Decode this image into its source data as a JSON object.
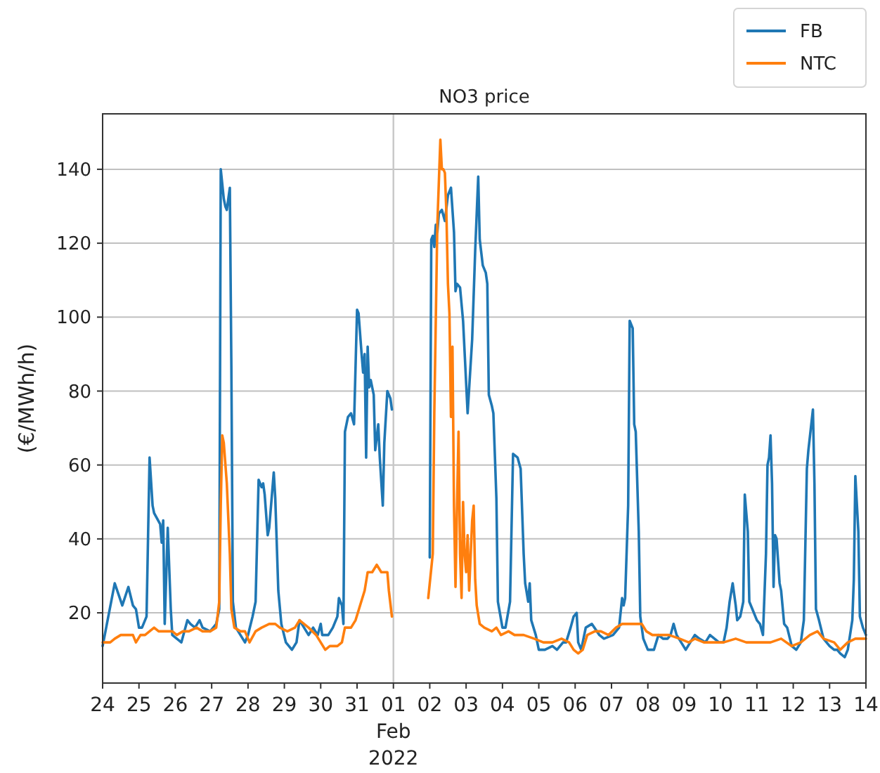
{
  "chart_data": {
    "type": "line",
    "title": "NO3 price",
    "ylabel": "(€/MWh/h)",
    "xlim": [
      "2022-01-24",
      "2022-02-14"
    ],
    "xticks": [
      {
        "value": "2022-01-24",
        "label": "24"
      },
      {
        "value": "2022-01-25",
        "label": "25"
      },
      {
        "value": "2022-01-26",
        "label": "26"
      },
      {
        "value": "2022-01-27",
        "label": "27"
      },
      {
        "value": "2022-01-28",
        "label": "28"
      },
      {
        "value": "2022-01-29",
        "label": "29"
      },
      {
        "value": "2022-01-30",
        "label": "30"
      },
      {
        "value": "2022-01-31",
        "label": "31"
      },
      {
        "value": "2022-02-01",
        "label": "01\nFeb\n2022"
      },
      {
        "value": "2022-02-02",
        "label": "02"
      },
      {
        "value": "2022-02-03",
        "label": "03"
      },
      {
        "value": "2022-02-04",
        "label": "04"
      },
      {
        "value": "2022-02-05",
        "label": "05"
      },
      {
        "value": "2022-02-06",
        "label": "06"
      },
      {
        "value": "2022-02-07",
        "label": "07"
      },
      {
        "value": "2022-02-08",
        "label": "08"
      },
      {
        "value": "2022-02-09",
        "label": "09"
      },
      {
        "value": "2022-02-10",
        "label": "10"
      },
      {
        "value": "2022-02-11",
        "label": "11"
      },
      {
        "value": "2022-02-12",
        "label": "12"
      },
      {
        "value": "2022-02-13",
        "label": "13"
      },
      {
        "value": "2022-02-14",
        "label": "14"
      }
    ],
    "ylim": [
      1,
      155
    ],
    "yticks": [
      20,
      40,
      60,
      80,
      100,
      120,
      140
    ],
    "grid": "y",
    "legend": "top right",
    "ref_lines": [
      {
        "axis": "x",
        "value": "2022-02-01",
        "color": "#c8c8c8"
      }
    ],
    "series": [
      {
        "name": "FB",
        "color": "#1f77b4",
        "x": [
          "2022-01-24T00:00",
          "2022-01-24T08:00",
          "2022-01-24T13:00",
          "2022-01-24T17:00",
          "2022-01-24T20:00",
          "2022-01-24T22:00",
          "2022-01-25T00:00",
          "2022-01-25T02:00",
          "2022-01-25T05:00",
          "2022-01-25T07:00",
          "2022-01-25T09:00",
          "2022-01-25T10:00",
          "2022-01-25T14:00",
          "2022-01-25T15:00",
          "2022-01-25T16:00",
          "2022-01-25T17:00",
          "2022-01-25T19:00",
          "2022-01-25T21:00",
          "2022-01-25T22:00",
          "2022-01-26T01:00",
          "2022-01-26T04:00",
          "2022-01-26T08:00",
          "2022-01-26T10:00",
          "2022-01-26T13:00",
          "2022-01-26T16:00",
          "2022-01-26T18:00",
          "2022-01-26T23:00",
          "2022-01-27T03:00",
          "2022-01-27T05:00",
          "2022-01-27T06:00",
          "2022-01-27T08:00",
          "2022-01-27T09:00",
          "2022-01-27T10:00",
          "2022-01-27T12:00",
          "2022-01-27T13:00",
          "2022-01-27T14:00",
          "2022-01-27T16:00",
          "2022-01-27T19:00",
          "2022-01-27T22:00",
          "2022-01-28T00:00",
          "2022-01-28T03:00",
          "2022-01-28T05:00",
          "2022-01-28T07:00",
          "2022-01-28T09:00",
          "2022-01-28T10:00",
          "2022-01-28T11:00",
          "2022-01-28T13:00",
          "2022-01-28T14:00",
          "2022-01-28T17:00",
          "2022-01-28T18:00",
          "2022-01-28T20:00",
          "2022-01-28T22:00",
          "2022-01-29T01:00",
          "2022-01-29T05:00",
          "2022-01-29T08:00",
          "2022-01-29T10:00",
          "2022-01-29T13:00",
          "2022-01-29T16:00",
          "2022-01-29T19:00",
          "2022-01-29T22:00",
          "2022-01-30T00:00",
          "2022-01-30T01:00",
          "2022-01-30T05:00",
          "2022-01-30T08:00",
          "2022-01-30T11:00",
          "2022-01-30T12:00",
          "2022-01-30T14:00",
          "2022-01-30T15:00",
          "2022-01-30T16:00",
          "2022-01-30T18:00",
          "2022-01-30T20:00",
          "2022-01-30T22:00",
          "2022-01-31T00:00",
          "2022-01-31T01:00",
          "2022-01-31T03:00",
          "2022-01-31T04:00",
          "2022-01-31T05:00",
          "2022-01-31T06:00",
          "2022-01-31T07:00",
          "2022-01-31T08:00",
          "2022-01-31T09:00",
          "2022-01-31T11:00",
          "2022-01-31T12:00",
          "2022-01-31T14:00",
          "2022-01-31T15:00",
          "2022-01-31T17:00",
          "2022-01-31T18:00",
          "2022-01-31T20:00",
          "2022-01-31T22:00",
          "2022-01-31T23:00",
          "2022-02-01T12:00",
          "2022-02-02T00:00",
          "2022-02-02T01:00",
          "2022-02-02T02:00",
          "2022-02-02T03:00",
          "2022-02-02T04:00",
          "2022-02-02T05:00",
          "2022-02-02T06:00",
          "2022-02-02T08:00",
          "2022-02-02T10:00",
          "2022-02-02T12:00",
          "2022-02-02T14:00",
          "2022-02-02T16:00",
          "2022-02-02T17:00",
          "2022-02-02T18:00",
          "2022-02-02T20:00",
          "2022-02-02T22:00",
          "2022-02-03T01:00",
          "2022-02-03T04:00",
          "2022-02-03T06:00",
          "2022-02-03T08:00",
          "2022-02-03T09:00",
          "2022-02-03T11:00",
          "2022-02-03T13:00",
          "2022-02-03T14:00",
          "2022-02-03T15:00",
          "2022-02-03T17:00",
          "2022-02-03T18:00",
          "2022-02-03T20:00",
          "2022-02-03T21:00",
          "2022-02-04T00:00",
          "2022-02-04T02:00",
          "2022-02-04T05:00",
          "2022-02-04T07:00",
          "2022-02-04T10:00",
          "2022-02-04T12:00",
          "2022-02-04T14:00",
          "2022-02-04T15:00",
          "2022-02-04T17:00",
          "2022-02-04T18:00",
          "2022-02-04T19:00",
          "2022-02-04T22:00",
          "2022-02-05T00:00",
          "2022-02-05T04:00",
          "2022-02-05T09:00",
          "2022-02-05T12:00",
          "2022-02-05T16:00",
          "2022-02-05T18:00",
          "2022-02-05T21:00",
          "2022-02-05T23:00",
          "2022-02-06T01:00",
          "2022-02-06T02:00",
          "2022-02-06T04:00",
          "2022-02-06T07:00",
          "2022-02-06T11:00",
          "2022-02-06T16:00",
          "2022-02-06T19:00",
          "2022-02-07T01:00",
          "2022-02-07T05:00",
          "2022-02-07T07:00",
          "2022-02-07T08:00",
          "2022-02-07T09:00",
          "2022-02-07T11:00",
          "2022-02-07T12:00",
          "2022-02-07T14:00",
          "2022-02-07T15:00",
          "2022-02-07T16:00",
          "2022-02-07T18:00",
          "2022-02-07T19:00",
          "2022-02-07T21:00",
          "2022-02-08T00:00",
          "2022-02-08T04:00",
          "2022-02-08T07:00",
          "2022-02-08T10:00",
          "2022-02-08T13:00",
          "2022-02-08T15:00",
          "2022-02-08T17:00",
          "2022-02-08T19:00",
          "2022-02-08T22:00",
          "2022-02-09T01:00",
          "2022-02-09T04:00",
          "2022-02-09T07:00",
          "2022-02-09T10:00",
          "2022-02-09T14:00",
          "2022-02-09T17:00",
          "2022-02-09T20:00",
          "2022-02-09T23:00",
          "2022-02-10T02:00",
          "2022-02-10T04:00",
          "2022-02-10T06:00",
          "2022-02-10T08:00",
          "2022-02-10T10:00",
          "2022-02-10T11:00",
          "2022-02-10T13:00",
          "2022-02-10T15:00",
          "2022-02-10T16:00",
          "2022-02-10T18:00",
          "2022-02-10T19:00",
          "2022-02-10T21:00",
          "2022-02-11T00:00",
          "2022-02-11T02:00",
          "2022-02-11T04:00",
          "2022-02-11T06:00",
          "2022-02-11T07:00",
          "2022-02-11T08:00",
          "2022-02-11T09:00",
          "2022-02-11T10:00",
          "2022-02-11T11:00",
          "2022-02-11T12:00",
          "2022-02-11T13:00",
          "2022-02-11T15:00",
          "2022-02-11T16:00",
          "2022-02-11T18:00",
          "2022-02-11T20:00",
          "2022-02-11T23:00",
          "2022-02-12T02:00",
          "2022-02-12T05:00",
          "2022-02-12T07:00",
          "2022-02-12T09:00",
          "2022-02-12T10:00",
          "2022-02-12T13:00",
          "2022-02-12T14:00",
          "2022-02-12T15:00",
          "2022-02-12T17:00",
          "2022-02-12T20:00",
          "2022-02-13T00:00",
          "2022-02-13T03:00",
          "2022-02-13T05:00",
          "2022-02-13T07:00",
          "2022-02-13T10:00",
          "2022-02-13T12:00",
          "2022-02-13T15:00",
          "2022-02-13T16:00",
          "2022-02-13T17:00",
          "2022-02-13T19:00",
          "2022-02-13T20:00",
          "2022-02-13T22:00",
          "2022-02-14T00:00"
        ],
        "values": [
          11,
          28,
          22,
          27,
          22,
          21,
          16,
          16,
          19,
          62,
          49,
          47,
          44,
          39,
          45,
          17,
          43,
          21,
          14,
          13,
          12,
          18,
          17,
          16,
          18,
          16,
          15,
          17,
          21,
          140,
          132,
          130,
          129,
          135,
          87,
          23,
          16,
          14,
          12,
          14,
          19,
          23,
          56,
          54,
          55,
          52,
          41,
          43,
          58,
          51,
          26,
          17,
          12,
          10,
          12,
          18,
          16,
          14,
          16,
          14,
          17,
          14,
          14,
          16,
          19,
          24,
          22,
          17,
          69,
          73,
          74,
          71,
          102,
          101,
          90,
          85,
          90,
          62,
          92,
          81,
          83,
          79,
          64,
          71,
          62,
          49,
          66,
          80,
          78,
          75,
          null,
          35,
          121,
          122,
          119,
          125,
          123,
          128,
          129,
          126,
          133,
          135,
          123,
          107,
          109,
          108,
          99,
          74,
          94,
          118,
          138,
          121,
          114,
          112,
          109,
          79,
          76,
          74,
          51,
          23,
          16,
          16,
          23,
          63,
          62,
          59,
          36,
          28,
          23,
          28,
          18,
          14,
          10,
          10,
          11,
          10,
          12,
          12,
          16,
          19,
          20,
          12,
          10,
          16,
          17,
          14,
          13,
          14,
          16,
          24,
          22,
          24,
          49,
          99,
          97,
          71,
          69,
          42,
          19,
          13,
          10,
          10,
          14,
          13,
          13,
          14,
          17,
          14,
          12,
          10,
          12,
          14,
          13,
          12,
          14,
          13,
          12,
          12,
          16,
          23,
          28,
          22,
          18,
          19,
          23,
          52,
          42,
          23,
          21,
          18,
          17,
          14,
          36,
          60,
          62,
          68,
          55,
          27,
          41,
          40,
          28,
          26,
          17,
          16,
          11,
          10,
          12,
          18,
          59,
          64,
          75,
          55,
          21,
          18,
          13,
          11,
          10,
          10,
          9,
          8,
          10,
          18,
          29,
          57,
          42,
          19,
          16,
          14
        ]
      },
      {
        "name": "NTC",
        "color": "#ff7f0e",
        "x": [
          "2022-01-24T00:00",
          "2022-01-24T05:00",
          "2022-01-24T08:00",
          "2022-01-24T12:00",
          "2022-01-24T17:00",
          "2022-01-24T20:00",
          "2022-01-24T22:00",
          "2022-01-25T01:00",
          "2022-01-25T04:00",
          "2022-01-25T07:00",
          "2022-01-25T10:00",
          "2022-01-25T13:00",
          "2022-01-25T18:00",
          "2022-01-25T22:00",
          "2022-01-26T01:00",
          "2022-01-26T05:00",
          "2022-01-26T09:00",
          "2022-01-26T14:00",
          "2022-01-26T18:00",
          "2022-01-26T23:00",
          "2022-01-27T03:00",
          "2022-01-27T05:00",
          "2022-01-27T06:00",
          "2022-01-27T07:00",
          "2022-01-27T08:00",
          "2022-01-27T10:00",
          "2022-01-27T12:00",
          "2022-01-27T13:00",
          "2022-01-27T15:00",
          "2022-01-27T19:00",
          "2022-01-27T22:00",
          "2022-01-28T01:00",
          "2022-01-28T05:00",
          "2022-01-28T09:00",
          "2022-01-28T14:00",
          "2022-01-28T18:00",
          "2022-01-28T21:00",
          "2022-01-29T02:00",
          "2022-01-29T07:00",
          "2022-01-29T10:00",
          "2022-01-29T13:00",
          "2022-01-29T16:00",
          "2022-01-29T21:00",
          "2022-01-30T00:00",
          "2022-01-30T03:00",
          "2022-01-30T06:00",
          "2022-01-30T11:00",
          "2022-01-30T14:00",
          "2022-01-30T16:00",
          "2022-01-30T20:00",
          "2022-01-30T23:00",
          "2022-01-31T02:00",
          "2022-01-31T05:00",
          "2022-01-31T07:00",
          "2022-01-31T10:00",
          "2022-01-31T13:00",
          "2022-01-31T16:00",
          "2022-01-31T20:00",
          "2022-01-31T21:00",
          "2022-01-31T23:00",
          "2022-02-01T12:00",
          "2022-02-01T23:00",
          "2022-02-02T01:00",
          "2022-02-02T02:00",
          "2022-02-02T03:00",
          "2022-02-02T05:00",
          "2022-02-02T07:00",
          "2022-02-02T08:00",
          "2022-02-02T09:00",
          "2022-02-02T10:00",
          "2022-02-02T11:00",
          "2022-02-02T12:00",
          "2022-02-02T13:00",
          "2022-02-02T14:00",
          "2022-02-02T15:00",
          "2022-02-02T16:00",
          "2022-02-02T17:00",
          "2022-02-02T18:00",
          "2022-02-02T19:00",
          "2022-02-02T20:00",
          "2022-02-02T21:00",
          "2022-02-02T22:00",
          "2022-02-02T23:00",
          "2022-02-03T00:00",
          "2022-02-03T01:00",
          "2022-02-03T02:00",
          "2022-02-03T04:00",
          "2022-02-03T05:00",
          "2022-02-03T06:00",
          "2022-02-03T07:00",
          "2022-02-03T09:00",
          "2022-02-03T12:00",
          "2022-02-03T17:00",
          "2022-02-03T20:00",
          "2022-02-03T23:00",
          "2022-02-04T04:00",
          "2022-02-04T08:00",
          "2022-02-04T14:00",
          "2022-02-04T21:00",
          "2022-02-05T03:00",
          "2022-02-05T09:00",
          "2022-02-05T15:00",
          "2022-02-05T20:00",
          "2022-02-05T23:00",
          "2022-02-06T02:00",
          "2022-02-06T05:00",
          "2022-02-06T08:00",
          "2022-02-06T13:00",
          "2022-02-06T17:00",
          "2022-02-06T22:00",
          "2022-02-07T03:00",
          "2022-02-07T07:00",
          "2022-02-07T12:00",
          "2022-02-07T17:00",
          "2022-02-07T20:00",
          "2022-02-07T23:00",
          "2022-02-08T03:00",
          "2022-02-08T10:00",
          "2022-02-08T14:00",
          "2022-02-08T21:00",
          "2022-02-09T03:00",
          "2022-02-09T07:00",
          "2022-02-09T13:00",
          "2022-02-09T20:00",
          "2022-02-10T02:00",
          "2022-02-10T10:00",
          "2022-02-10T17:00",
          "2022-02-11T01:00",
          "2022-02-11T09:00",
          "2022-02-11T16:00",
          "2022-02-11T23:00",
          "2022-02-12T05:00",
          "2022-02-12T11:00",
          "2022-02-12T16:00",
          "2022-02-12T20:00",
          "2022-02-13T03:00",
          "2022-02-13T07:00",
          "2022-02-13T12:00",
          "2022-02-13T17:00",
          "2022-02-14T00:00"
        ],
        "values": [
          12,
          12,
          13,
          14,
          14,
          14,
          12,
          14,
          14,
          15,
          16,
          15,
          15,
          15,
          14,
          15,
          15,
          16,
          15,
          15,
          16,
          23,
          49,
          68,
          66,
          55,
          36,
          21,
          16,
          15,
          15,
          12,
          15,
          16,
          17,
          17,
          16,
          15,
          16,
          18,
          17,
          16,
          14,
          12,
          10,
          11,
          11,
          12,
          16,
          16,
          18,
          22,
          26,
          31,
          31,
          33,
          31,
          31,
          26,
          19,
          null,
          24,
          32,
          36,
          74,
          125,
          148,
          140,
          140,
          139,
          128,
          109,
          101,
          73,
          92,
          49,
          27,
          49,
          69,
          36,
          24,
          50,
          36,
          31,
          41,
          26,
          45,
          49,
          29,
          22,
          17,
          16,
          15,
          16,
          14,
          15,
          14,
          14,
          13,
          12,
          12,
          13,
          12,
          10,
          9,
          10,
          14,
          15,
          15,
          14,
          16,
          17,
          17,
          17,
          17,
          15,
          14,
          14,
          14,
          13,
          12,
          13,
          12,
          12,
          12,
          13,
          12,
          12,
          12,
          13,
          11,
          12,
          14,
          15,
          13,
          12,
          10,
          12,
          13,
          13
        ]
      }
    ]
  }
}
